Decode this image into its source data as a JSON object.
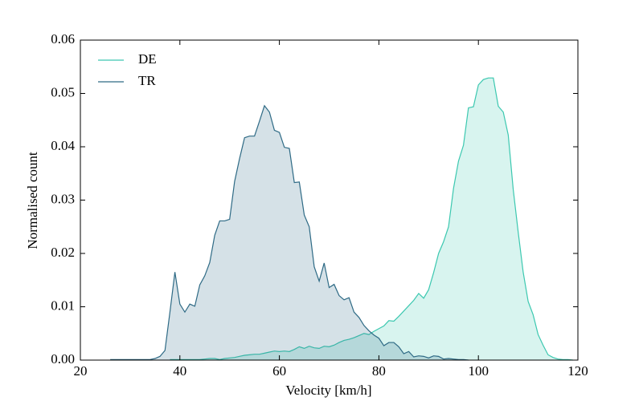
{
  "chart_data": {
    "type": "area",
    "x_label": "Velocity [km/h]",
    "y_label": "Normalised count",
    "xlim": [
      20,
      120
    ],
    "xticks": [
      20,
      40,
      60,
      80,
      100,
      120
    ],
    "ylim": [
      0,
      0.06
    ],
    "yticks": [
      {
        "value": 0,
        "label": "0.00"
      },
      {
        "value": 0.01,
        "label": "0.01"
      },
      {
        "value": 0.02,
        "label": "0.02"
      },
      {
        "value": 0.03,
        "label": "0.03"
      },
      {
        "value": 0.04,
        "label": "0.04"
      },
      {
        "value": 0.05,
        "label": "0.05"
      },
      {
        "value": 0.06,
        "label": "0.06"
      }
    ],
    "legend": "upper left",
    "grid": false,
    "series": [
      {
        "name": "DE",
        "color": "#3cc8b0",
        "x": [
          38,
          39,
          40,
          41,
          42,
          43,
          44,
          45,
          46,
          47,
          48,
          49,
          50,
          51,
          52,
          53,
          54,
          55,
          56,
          57,
          58,
          59,
          60,
          61,
          62,
          63,
          64,
          65,
          66,
          67,
          68,
          69,
          70,
          71,
          72,
          73,
          74,
          75,
          76,
          77,
          78,
          79,
          80,
          81,
          82,
          83,
          84,
          85,
          86,
          87,
          88,
          89,
          90,
          91,
          92,
          93,
          94,
          95,
          96,
          97,
          98,
          99,
          100,
          101,
          102,
          103,
          104,
          105,
          106,
          107,
          108,
          109,
          110,
          111,
          112,
          113,
          114,
          115,
          116,
          117,
          118,
          119
        ],
        "values": [
          0.0001,
          0.0001,
          0.0001,
          0.0001,
          0.0001,
          0.0001,
          0.0001,
          0.0002,
          0.0003,
          0.0003,
          0.0001,
          0.0003,
          0.0004,
          0.0005,
          0.0007,
          0.0009,
          0.001,
          0.0011,
          0.0011,
          0.0013,
          0.0015,
          0.0017,
          0.0016,
          0.0017,
          0.0016,
          0.002,
          0.0025,
          0.0022,
          0.0026,
          0.0023,
          0.0022,
          0.0026,
          0.0025,
          0.0028,
          0.0033,
          0.0037,
          0.0039,
          0.0042,
          0.0046,
          0.005,
          0.0048,
          0.0054,
          0.0059,
          0.0064,
          0.0074,
          0.0073,
          0.0082,
          0.0092,
          0.0102,
          0.0112,
          0.0125,
          0.0116,
          0.0132,
          0.0164,
          0.02,
          0.0222,
          0.025,
          0.0322,
          0.0373,
          0.0403,
          0.0473,
          0.0475,
          0.0516,
          0.0526,
          0.0529,
          0.0529,
          0.0476,
          0.0465,
          0.0422,
          0.032,
          0.024,
          0.0165,
          0.011,
          0.0085,
          0.0048,
          0.0028,
          0.001,
          0.0005,
          0.0002,
          0.0001,
          0.0001,
          0
        ]
      },
      {
        "name": "TR",
        "color": "#2e6a85",
        "x": [
          26,
          27,
          28,
          29,
          30,
          31,
          32,
          33,
          34,
          35,
          36,
          37,
          38,
          39,
          40,
          41,
          42,
          43,
          44,
          45,
          46,
          47,
          48,
          49,
          50,
          51,
          52,
          53,
          54,
          55,
          56,
          57,
          58,
          59,
          60,
          61,
          62,
          63,
          64,
          65,
          66,
          67,
          68,
          69,
          70,
          71,
          72,
          73,
          74,
          75,
          76,
          77,
          78,
          79,
          80,
          81,
          82,
          83,
          84,
          85,
          86,
          87,
          88,
          89,
          90,
          91,
          92,
          93,
          94,
          95,
          96,
          97,
          98
        ],
        "values": [
          0.0001,
          0.0001,
          0.0001,
          0.0001,
          0.0001,
          0.0001,
          0.0001,
          0.0001,
          0.0001,
          0.0003,
          0.0007,
          0.0018,
          0.009,
          0.0165,
          0.0105,
          0.009,
          0.0105,
          0.0101,
          0.0141,
          0.0158,
          0.0183,
          0.0234,
          0.0261,
          0.0261,
          0.0264,
          0.0335,
          0.0378,
          0.0417,
          0.042,
          0.042,
          0.0448,
          0.0477,
          0.0465,
          0.0431,
          0.0427,
          0.0399,
          0.0397,
          0.0333,
          0.0334,
          0.0272,
          0.025,
          0.0175,
          0.0148,
          0.0182,
          0.0136,
          0.0142,
          0.0121,
          0.0113,
          0.0117,
          0.009,
          0.008,
          0.0065,
          0.0055,
          0.0047,
          0.0041,
          0.0027,
          0.0033,
          0.0033,
          0.0025,
          0.0012,
          0.0016,
          0.0006,
          0.0008,
          0.0007,
          0.0004,
          0.0008,
          0.0007,
          0.0002,
          0.0003,
          0.0002,
          0.0001,
          0.0001,
          0
        ]
      }
    ]
  }
}
